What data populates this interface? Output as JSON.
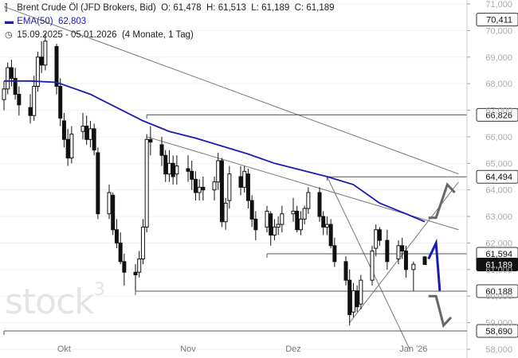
{
  "header": {
    "instrument": "Brent Crude Öl (JFD Brokers, Bid)",
    "ohlc": {
      "o_label": "O:",
      "o": "61,478",
      "h_label": "H:",
      "h": "61,513",
      "l_label": "L:",
      "l": "61,189",
      "c_label": "C:",
      "c": "61,189"
    },
    "ema_label": "EMA(50)",
    "ema_value": "62,803",
    "range": "15.09.2025 - 05.01.2026",
    "range_detail": "(4 Monate, 1 Tag)"
  },
  "watermark": {
    "text": "stock",
    "sup": "3"
  },
  "colors": {
    "candle": "#111111",
    "ema": "#1a1ab4",
    "trendline": "#777777",
    "level_box": "#555555",
    "up_arrow": "#1a1ab4",
    "scenario": "#666666",
    "price_tag_bg": "#111111",
    "price_tag_text": "#ffffff"
  },
  "chart_data": {
    "type": "candlestick",
    "title": "Brent Crude Öl (JFD Brokers, Bid)",
    "ylim": [
      58.0,
      71.0
    ],
    "y_ticks": [
      "58,000",
      "59,000",
      "60,000",
      "61,000",
      "62,000",
      "63,000",
      "64,000",
      "65,000",
      "66,000",
      "67,000",
      "68,000",
      "69,000",
      "70,000",
      "71,000"
    ],
    "x_ticks": [
      "Okt",
      "Nov",
      "Dez",
      "Jan '26"
    ],
    "x_tick_dates": [
      "2025-10-01",
      "2025-11-03",
      "2025-12-01",
      "2026-01-02"
    ],
    "date_range": [
      "2025-09-15",
      "2026-01-05"
    ],
    "candles": [
      [
        "2025-09-15",
        67.4,
        68.1,
        67.0,
        67.8
      ],
      [
        "2025-09-16",
        67.8,
        68.8,
        67.6,
        68.6
      ],
      [
        "2025-09-17",
        68.6,
        68.9,
        67.9,
        68.2
      ],
      [
        "2025-09-18",
        68.2,
        68.6,
        67.4,
        67.6
      ],
      [
        "2025-09-19",
        67.6,
        67.9,
        66.8,
        67.2
      ],
      [
        "2025-09-22",
        67.1,
        67.6,
        66.5,
        66.8
      ],
      [
        "2025-09-23",
        66.8,
        68.3,
        66.6,
        67.9
      ],
      [
        "2025-09-24",
        67.9,
        69.2,
        67.7,
        69.0
      ],
      [
        "2025-09-25",
        69.0,
        69.6,
        68.4,
        68.7
      ],
      [
        "2025-09-26",
        68.7,
        69.9,
        68.5,
        69.6
      ],
      [
        "2025-09-29",
        69.4,
        69.5,
        67.6,
        67.9
      ],
      [
        "2025-09-30",
        67.9,
        68.2,
        66.4,
        66.7
      ],
      [
        "2025-10-01",
        66.6,
        66.9,
        65.6,
        65.9
      ],
      [
        "2025-10-02",
        65.9,
        66.3,
        64.9,
        65.2
      ],
      [
        "2025-10-03",
        65.2,
        66.4,
        65.0,
        66.1
      ],
      [
        "2025-10-06",
        66.2,
        66.9,
        65.9,
        66.4
      ],
      [
        "2025-10-07",
        66.4,
        66.8,
        65.7,
        65.9
      ],
      [
        "2025-10-08",
        65.9,
        66.6,
        65.6,
        66.3
      ],
      [
        "2025-10-09",
        66.3,
        66.5,
        65.3,
        65.5
      ],
      [
        "2025-10-10",
        65.4,
        65.6,
        62.9,
        63.1
      ],
      [
        "2025-10-13",
        63.1,
        64.2,
        62.9,
        63.9
      ],
      [
        "2025-10-14",
        63.8,
        63.9,
        62.3,
        62.5
      ],
      [
        "2025-10-15",
        62.5,
        62.9,
        61.8,
        62.0
      ],
      [
        "2025-10-16",
        62.0,
        62.4,
        61.2,
        61.3
      ],
      [
        "2025-10-17",
        61.3,
        61.6,
        60.4,
        60.9
      ],
      [
        "2025-10-20",
        60.9,
        61.2,
        60.2,
        60.8
      ],
      [
        "2025-10-21",
        60.9,
        61.7,
        60.7,
        61.4
      ],
      [
        "2025-10-22",
        61.4,
        62.9,
        61.2,
        62.6
      ],
      [
        "2025-10-23",
        62.6,
        66.1,
        62.4,
        65.9
      ],
      [
        "2025-10-24",
        65.9,
        66.4,
        65.3,
        65.8
      ],
      [
        "2025-10-27",
        65.7,
        66.0,
        64.9,
        65.3
      ],
      [
        "2025-10-28",
        65.3,
        65.5,
        64.3,
        64.6
      ],
      [
        "2025-10-29",
        64.6,
        65.5,
        64.3,
        65.0
      ],
      [
        "2025-10-30",
        65.0,
        65.3,
        64.2,
        64.5
      ],
      [
        "2025-10-31",
        64.6,
        65.3,
        64.2,
        64.9
      ],
      [
        "2025-11-03",
        64.8,
        65.3,
        64.3,
        64.7
      ],
      [
        "2025-11-04",
        64.7,
        65.1,
        64.0,
        64.4
      ],
      [
        "2025-11-05",
        64.4,
        64.7,
        63.6,
        63.9
      ],
      [
        "2025-11-06",
        63.9,
        64.4,
        63.6,
        64.1
      ],
      [
        "2025-11-07",
        64.1,
        64.5,
        63.6,
        64.0
      ],
      [
        "2025-11-10",
        64.0,
        64.5,
        63.6,
        64.3
      ],
      [
        "2025-11-11",
        64.3,
        65.4,
        64.0,
        65.1
      ],
      [
        "2025-11-12",
        65.1,
        65.2,
        62.6,
        62.8
      ],
      [
        "2025-11-13",
        62.8,
        63.7,
        62.5,
        63.5
      ],
      [
        "2025-11-14",
        63.6,
        64.9,
        63.3,
        64.6
      ],
      [
        "2025-11-17",
        64.5,
        64.9,
        63.8,
        64.1
      ],
      [
        "2025-11-18",
        64.1,
        64.9,
        63.9,
        64.7
      ],
      [
        "2025-11-19",
        64.6,
        64.8,
        63.3,
        63.6
      ],
      [
        "2025-11-20",
        63.6,
        63.8,
        62.6,
        62.9
      ],
      [
        "2025-11-21",
        62.9,
        63.2,
        62.1,
        62.5
      ],
      [
        "2025-11-24",
        62.6,
        63.4,
        62.4,
        63.2
      ],
      [
        "2025-11-25",
        63.1,
        63.2,
        61.9,
        62.3
      ],
      [
        "2025-11-26",
        62.3,
        62.9,
        62.1,
        62.6
      ],
      [
        "2025-11-27",
        62.6,
        63.0,
        62.3,
        62.7
      ],
      [
        "2025-11-28",
        62.7,
        63.4,
        62.4,
        63.1
      ],
      [
        "2025-12-01",
        63.1,
        63.7,
        62.8,
        63.2
      ],
      [
        "2025-12-02",
        63.2,
        63.4,
        62.4,
        62.5
      ],
      [
        "2025-12-03",
        62.5,
        63.2,
        62.3,
        62.9
      ],
      [
        "2025-12-04",
        62.9,
        63.4,
        62.7,
        63.3
      ],
      [
        "2025-12-05",
        63.3,
        64.1,
        63.1,
        63.9
      ],
      [
        "2025-12-08",
        63.9,
        64.1,
        62.8,
        63.0
      ],
      [
        "2025-12-09",
        63.0,
        63.2,
        62.3,
        62.6
      ],
      [
        "2025-12-10",
        62.6,
        63.0,
        62.3,
        62.7
      ],
      [
        "2025-12-11",
        62.7,
        62.9,
        61.8,
        61.9
      ],
      [
        "2025-12-12",
        61.9,
        62.2,
        61.1,
        61.3
      ],
      [
        "2025-12-15",
        61.3,
        61.5,
        60.4,
        60.6
      ],
      [
        "2025-12-16",
        60.6,
        61.0,
        58.9,
        59.3
      ],
      [
        "2025-12-17",
        59.4,
        60.5,
        59.2,
        60.2
      ],
      [
        "2025-12-18",
        60.2,
        60.4,
        59.4,
        59.6
      ],
      [
        "2025-12-19",
        59.7,
        60.8,
        59.5,
        60.6
      ],
      [
        "2025-12-22",
        60.6,
        61.9,
        60.4,
        61.7
      ],
      [
        "2025-12-23",
        61.8,
        62.7,
        61.5,
        62.5
      ],
      [
        "2025-12-24",
        62.5,
        62.6,
        61.9,
        62.1
      ],
      [
        "2025-12-26",
        62.1,
        62.5,
        61.0,
        61.3
      ],
      [
        "2025-12-29",
        61.4,
        62.1,
        61.2,
        61.9
      ],
      [
        "2025-12-30",
        61.9,
        62.2,
        61.4,
        61.7
      ],
      [
        "2025-12-31",
        61.7,
        61.9,
        60.7,
        61.0
      ],
      [
        "2026-01-02",
        61.0,
        61.3,
        60.2,
        61.2
      ],
      [
        "2026-01-05",
        61.478,
        61.513,
        61.189,
        61.189
      ]
    ],
    "ema": {
      "name": "EMA(50)",
      "points": [
        [
          "2025-09-15",
          68.1
        ],
        [
          "2025-09-22",
          68.1
        ],
        [
          "2025-09-29",
          68.05
        ],
        [
          "2025-10-01",
          67.95
        ],
        [
          "2025-10-08",
          67.6
        ],
        [
          "2025-10-15",
          67.1
        ],
        [
          "2025-10-22",
          66.6
        ],
        [
          "2025-10-29",
          66.2
        ],
        [
          "2025-11-05",
          65.95
        ],
        [
          "2025-11-12",
          65.65
        ],
        [
          "2025-11-19",
          65.35
        ],
        [
          "2025-11-26",
          65.0
        ],
        [
          "2025-12-03",
          64.75
        ],
        [
          "2025-12-10",
          64.5
        ],
        [
          "2025-12-17",
          64.2
        ],
        [
          "2025-12-24",
          63.5
        ],
        [
          "2025-12-31",
          63.1
        ],
        [
          "2026-01-05",
          62.803
        ]
      ]
    },
    "trendlines": [
      {
        "from": [
          "2025-09-15",
          70.9
        ],
        "to": [
          "2026-01-14",
          64.6
        ]
      },
      {
        "from": [
          "2025-10-23",
          66.0
        ],
        "to": [
          "2026-01-14",
          62.5
        ]
      },
      {
        "from": [
          "2025-12-10",
          64.5
        ],
        "to": [
          "2026-01-01",
          58.0
        ]
      },
      {
        "from": [
          "2025-12-16",
          59.0
        ],
        "to": [
          "2026-01-14",
          64.3
        ]
      }
    ],
    "levels": [
      {
        "label": "70,411",
        "value": 70.411,
        "style": "tag"
      },
      {
        "label": "66,826",
        "value": 66.826,
        "from": "2025-10-23",
        "style": "box"
      },
      {
        "label": "64,494",
        "value": 64.494,
        "from": "2025-12-10",
        "style": "box"
      },
      {
        "label": "61,594",
        "value": 61.594,
        "from": "2025-11-24",
        "style": "box"
      },
      {
        "label": "61,189",
        "value": 61.189,
        "style": "current"
      },
      {
        "label": "60,188",
        "value": 60.188,
        "from": "2025-10-20",
        "style": "box"
      },
      {
        "label": "58,690",
        "value": 58.69,
        "from": "2025-09-15",
        "style": "box"
      }
    ],
    "scenarios": [
      {
        "color": "#666666",
        "points": [
          [
            "2026-01-06",
            62.95
          ],
          [
            "2026-01-08",
            62.95
          ],
          [
            "2026-01-11",
            64.2
          ],
          [
            "2026-01-13",
            63.9
          ]
        ]
      },
      {
        "color": "#1a1ab4",
        "points": [
          [
            "2026-01-06",
            61.4
          ],
          [
            "2026-01-08",
            62.0
          ],
          [
            "2026-01-09",
            60.2
          ]
        ]
      },
      {
        "color": "#666666",
        "points": [
          [
            "2026-01-06",
            60.0
          ],
          [
            "2026-01-08",
            60.0
          ],
          [
            "2026-01-10",
            58.9
          ],
          [
            "2026-01-12",
            59.2
          ]
        ]
      }
    ]
  }
}
